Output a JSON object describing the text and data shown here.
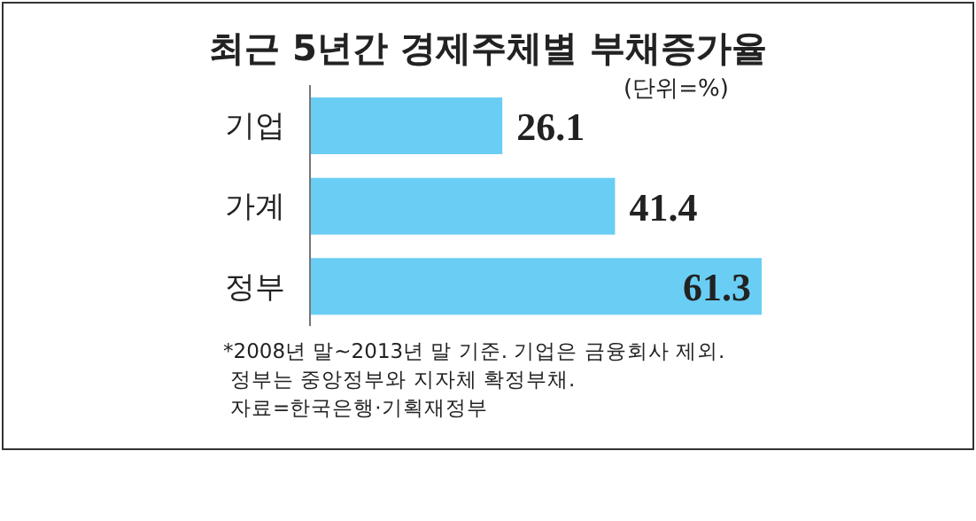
{
  "chart_data": {
    "type": "bar",
    "orientation": "horizontal",
    "title": "최근 5년간 경제주체별 부채증가율",
    "subtitle": "(단위=%)",
    "categories": [
      "기업",
      "가계",
      "정부"
    ],
    "values": [
      26.1,
      41.4,
      61.3
    ],
    "color": "#6acdf4",
    "data_labels": true,
    "grid": false,
    "legend": false,
    "annotations": [
      "*2008년 말~2013년 말 기준. 기업은 금융회사 제외.",
      "정부는 중앙정부와 지자체 확정부채.",
      "자료=한국은행·기획재정부"
    ]
  }
}
